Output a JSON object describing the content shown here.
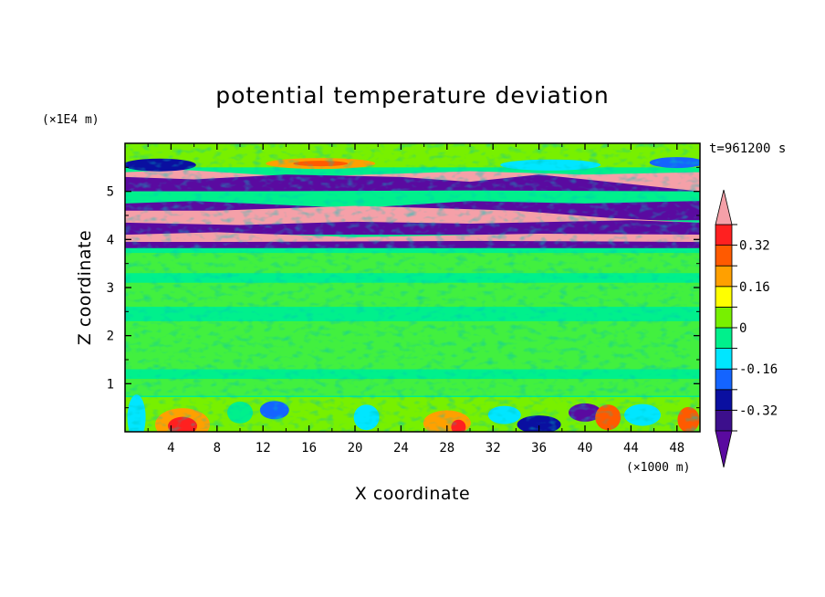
{
  "chart_data": {
    "type": "heatmap",
    "title": "potential temperature deviation",
    "xlabel": "X coordinate",
    "ylabel": "Z coordinate",
    "x_unit": "(×1000 m)",
    "y_unit": "(×1E4 m)",
    "time_label": "t=961200 s",
    "xlim": [
      0,
      50
    ],
    "ylim": [
      0,
      6
    ],
    "x_ticks": [
      4,
      8,
      12,
      16,
      20,
      24,
      28,
      32,
      36,
      40,
      44,
      48
    ],
    "y_ticks": [
      1,
      2,
      3,
      4,
      5
    ],
    "colorbar": {
      "levels": [
        -0.4,
        -0.32,
        -0.24,
        -0.16,
        -0.08,
        0,
        0.08,
        0.16,
        0.24,
        0.32,
        0.4
      ],
      "labels": [
        "0.32",
        "0.16",
        "0",
        "-0.16",
        "-0.32"
      ],
      "label_values": [
        0.32,
        0.16,
        0,
        -0.16,
        -0.32
      ],
      "colors": [
        "#5a0aa0",
        "#3c0f8c",
        "#0a0fa0",
        "#1464ff",
        "#00e6ff",
        "#00f08c",
        "#78f000",
        "#ffff00",
        "#ffa000",
        "#ff5a00",
        "#ff2020",
        "#f5a0a8"
      ],
      "extend": "both"
    },
    "layers": [
      {
        "z_range": [
          0,
          0.7
        ],
        "character": "mixed -0.4 to 0.4, strong low-level fluctuations"
      },
      {
        "z_range": [
          0.7,
          3.8
        ],
        "character": "near zero (green, -0.08 to 0.08)"
      },
      {
        "z_range": [
          3.8,
          5.4
        ],
        "character": "alternating bands beyond ±0.4 (violet / pink)"
      },
      {
        "z_range": [
          5.4,
          6.0
        ],
        "character": "mixed -0.32 to 0.32"
      }
    ]
  }
}
